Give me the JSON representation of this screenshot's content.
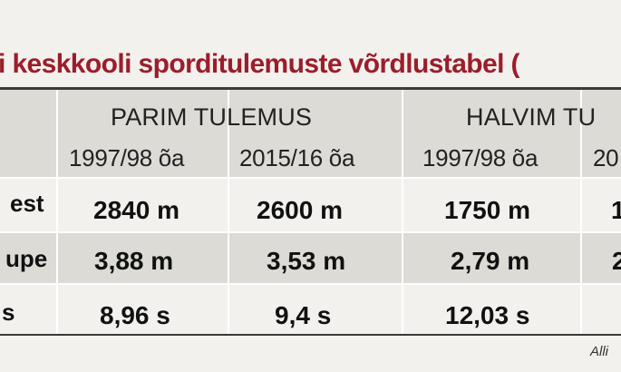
{
  "title": "i keskkooli sporditulemuste võrdlustabel (",
  "header": {
    "groups": [
      "PARIM TULEMUS",
      "HALVIM TU"
    ],
    "subheaders": [
      "1997/98 õa",
      "2015/16 õa",
      "1997/98 õa",
      "20"
    ]
  },
  "rows": [
    {
      "label": "est",
      "values": [
        "2840 m",
        "2600 m",
        "1750 m",
        "1"
      ]
    },
    {
      "label": "upe",
      "values": [
        "3,88 m",
        "3,53 m",
        "2,79 m",
        "2"
      ]
    },
    {
      "label": "s",
      "values": [
        "8,96 s",
        "9,4 s",
        "12,03 s",
        ""
      ]
    }
  ],
  "source": "Alli"
}
